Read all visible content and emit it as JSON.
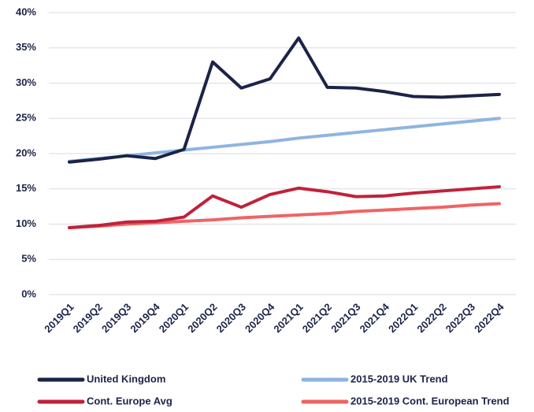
{
  "chart_data": {
    "type": "line",
    "categories": [
      "2019Q1",
      "2019Q2",
      "2019Q3",
      "2019Q4",
      "2020Q1",
      "2020Q2",
      "2020Q3",
      "2020Q4",
      "2021Q1",
      "2021Q2",
      "2021Q3",
      "2021Q4",
      "2022Q1",
      "2022Q2",
      "2022Q3",
      "2022Q4"
    ],
    "series": [
      {
        "name": "United Kingdom",
        "color": "#1b2447",
        "values": [
          18.8,
          19.2,
          19.7,
          19.3,
          20.6,
          33.0,
          29.3,
          30.6,
          36.4,
          29.4,
          29.3,
          28.8,
          28.1,
          28.0,
          28.2,
          28.4
        ]
      },
      {
        "name": "2015-2019 UK Trend",
        "color": "#8fb4e0",
        "values": [
          18.9,
          19.3,
          19.7,
          20.1,
          20.5,
          20.9,
          21.3,
          21.7,
          22.2,
          22.6,
          23.0,
          23.4,
          23.8,
          24.2,
          24.6,
          25.0
        ]
      },
      {
        "name": "Cont. Europe Avg",
        "color": "#c0223b",
        "values": [
          9.5,
          9.8,
          10.3,
          10.4,
          11.0,
          14.0,
          12.4,
          14.2,
          15.1,
          14.6,
          13.9,
          14.0,
          14.4,
          14.7,
          15.0,
          15.3
        ]
      },
      {
        "name": "2015-2019 Cont. European Trend",
        "color": "#ef6464",
        "values": [
          9.5,
          9.7,
          10.0,
          10.2,
          10.4,
          10.6,
          10.9,
          11.1,
          11.3,
          11.5,
          11.8,
          12.0,
          12.2,
          12.4,
          12.7,
          12.9
        ]
      }
    ],
    "ylim": [
      0,
      40
    ],
    "yticks": [
      {
        "value": 0,
        "label": "0%"
      },
      {
        "value": 5,
        "label": "5%"
      },
      {
        "value": 10,
        "label": "10%"
      },
      {
        "value": 15,
        "label": "15%"
      },
      {
        "value": 20,
        "label": "20%"
      },
      {
        "value": 25,
        "label": "25%"
      },
      {
        "value": 30,
        "label": "30%"
      },
      {
        "value": 35,
        "label": "35%"
      },
      {
        "value": 40,
        "label": "40%"
      }
    ],
    "grid": true,
    "legend": "bottom"
  }
}
